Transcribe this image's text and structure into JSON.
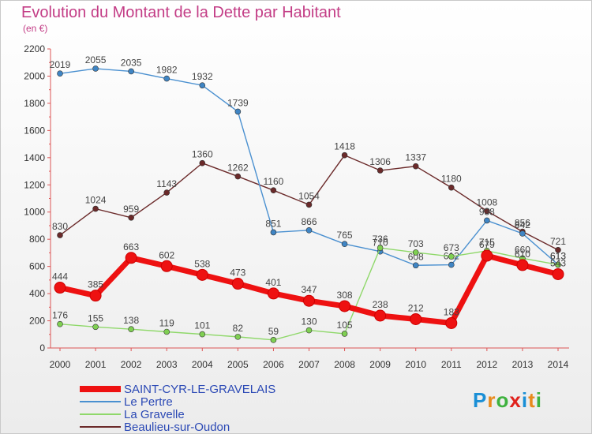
{
  "title": "Evolution du Montant de la Dette par Habitant",
  "subtitle": "(en €)",
  "logo_text": "Proxiti",
  "chart_data": {
    "type": "line",
    "title": "Evolution du Montant de la Dette par Habitant",
    "subtitle": "(en €)",
    "ylim": [
      0,
      2200
    ],
    "yticks": [
      0,
      200,
      400,
      600,
      800,
      1000,
      1200,
      1400,
      1600,
      1800,
      2000,
      2200
    ],
    "x": [
      "2000",
      "2001",
      "2002",
      "2003",
      "2004",
      "2005",
      "2006",
      "2007",
      "2008",
      "2009",
      "2010",
      "2011",
      "2012",
      "2013",
      "2014"
    ],
    "grid": false,
    "legend_position": "bottom-left",
    "series": [
      {
        "name": "Le Pertre",
        "color": "#4a90d0",
        "point": "#3f85c4",
        "values": [
          2019,
          2055,
          2035,
          1982,
          1932,
          1739,
          851,
          866,
          765,
          710,
          608,
          612,
          938,
          842,
          613
        ]
      },
      {
        "name": "La Gravelle",
        "color": "#8fd86a",
        "point": "#7fcf52",
        "values": [
          176,
          155,
          138,
          119,
          101,
          82,
          59,
          130,
          105,
          736,
          703,
          673,
          715,
          660,
          613
        ]
      },
      {
        "name": "Beaulieu-sur-Oudon",
        "color": "#6b2a2a",
        "point": "#6b2a2a",
        "values": [
          830,
          1024,
          959,
          1143,
          1360,
          1262,
          1160,
          1054,
          1418,
          1306,
          1337,
          1180,
          1008,
          856,
          721
        ]
      },
      {
        "name": "SAINT-CYR-LE-GRAVELAIS",
        "color": "#ee1111",
        "point": "#ee1111",
        "values": [
          444,
          385,
          663,
          602,
          538,
          473,
          401,
          347,
          308,
          238,
          212,
          183,
          679,
          610,
          543
        ]
      }
    ]
  },
  "legend_order": [
    3,
    0,
    1,
    2
  ]
}
